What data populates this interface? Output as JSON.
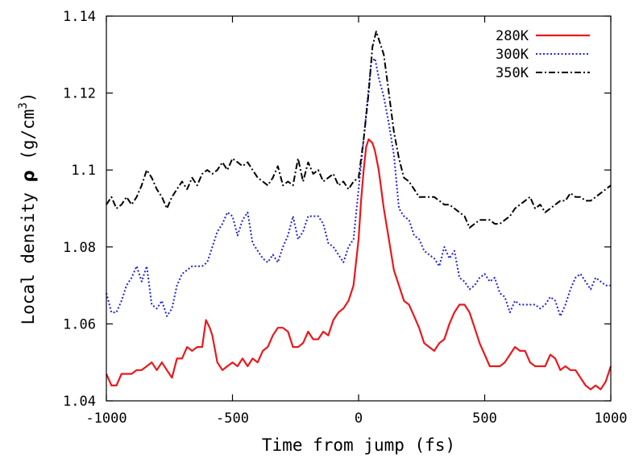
{
  "chart_data": {
    "type": "line",
    "title": "",
    "xlabel": "Time from jump (fs)",
    "ylabel_prefix": "Local density ",
    "ylabel_symbol": "ρ",
    "ylabel_unit_open": " (g/cm",
    "ylabel_unit_sup": "3",
    "ylabel_unit_close": ")",
    "xlim": [
      -1000,
      1000
    ],
    "ylim": [
      1.04,
      1.14
    ],
    "xticks": [
      -1000,
      -500,
      0,
      500,
      1000
    ],
    "yticks": [
      1.04,
      1.06,
      1.08,
      1.1,
      1.12,
      1.14
    ],
    "xtick_labels": [
      "-1000",
      "-500",
      "0",
      "500",
      "1000"
    ],
    "ytick_labels": [
      "1.04",
      "1.06",
      "1.08",
      "1.1",
      "1.12",
      "1.14"
    ],
    "grid": false,
    "legend_position": "top-right",
    "series": [
      {
        "name": "280K",
        "color": "#e8191c",
        "style": "solid",
        "points": [
          [
            -1000,
            1.047
          ],
          [
            -980,
            1.044
          ],
          [
            -960,
            1.044
          ],
          [
            -940,
            1.047
          ],
          [
            -900,
            1.047
          ],
          [
            -880,
            1.048
          ],
          [
            -860,
            1.048
          ],
          [
            -840,
            1.049
          ],
          [
            -820,
            1.05
          ],
          [
            -800,
            1.048
          ],
          [
            -780,
            1.05
          ],
          [
            -760,
            1.048
          ],
          [
            -740,
            1.046
          ],
          [
            -720,
            1.051
          ],
          [
            -700,
            1.051
          ],
          [
            -680,
            1.054
          ],
          [
            -660,
            1.053
          ],
          [
            -640,
            1.054
          ],
          [
            -620,
            1.054
          ],
          [
            -605,
            1.061
          ],
          [
            -590,
            1.059
          ],
          [
            -580,
            1.057
          ],
          [
            -560,
            1.05
          ],
          [
            -540,
            1.048
          ],
          [
            -520,
            1.049
          ],
          [
            -500,
            1.05
          ],
          [
            -480,
            1.049
          ],
          [
            -460,
            1.051
          ],
          [
            -440,
            1.049
          ],
          [
            -420,
            1.051
          ],
          [
            -400,
            1.05
          ],
          [
            -380,
            1.053
          ],
          [
            -360,
            1.054
          ],
          [
            -340,
            1.057
          ],
          [
            -320,
            1.059
          ],
          [
            -300,
            1.059
          ],
          [
            -280,
            1.058
          ],
          [
            -260,
            1.054
          ],
          [
            -240,
            1.054
          ],
          [
            -220,
            1.055
          ],
          [
            -200,
            1.058
          ],
          [
            -180,
            1.056
          ],
          [
            -160,
            1.056
          ],
          [
            -140,
            1.058
          ],
          [
            -120,
            1.057
          ],
          [
            -100,
            1.061
          ],
          [
            -80,
            1.063
          ],
          [
            -60,
            1.064
          ],
          [
            -40,
            1.066
          ],
          [
            -20,
            1.07
          ],
          [
            0,
            1.082
          ],
          [
            10,
            1.092
          ],
          [
            20,
            1.1
          ],
          [
            30,
            1.106
          ],
          [
            40,
            1.108
          ],
          [
            55,
            1.107
          ],
          [
            65,
            1.105
          ],
          [
            80,
            1.1
          ],
          [
            100,
            1.09
          ],
          [
            120,
            1.082
          ],
          [
            140,
            1.074
          ],
          [
            160,
            1.07
          ],
          [
            180,
            1.066
          ],
          [
            200,
            1.065
          ],
          [
            220,
            1.062
          ],
          [
            240,
            1.059
          ],
          [
            260,
            1.055
          ],
          [
            280,
            1.054
          ],
          [
            300,
            1.053
          ],
          [
            320,
            1.055
          ],
          [
            340,
            1.056
          ],
          [
            360,
            1.06
          ],
          [
            380,
            1.063
          ],
          [
            400,
            1.065
          ],
          [
            420,
            1.065
          ],
          [
            440,
            1.063
          ],
          [
            460,
            1.059
          ],
          [
            480,
            1.055
          ],
          [
            500,
            1.052
          ],
          [
            520,
            1.049
          ],
          [
            540,
            1.049
          ],
          [
            560,
            1.049
          ],
          [
            580,
            1.05
          ],
          [
            600,
            1.052
          ],
          [
            620,
            1.054
          ],
          [
            640,
            1.053
          ],
          [
            660,
            1.053
          ],
          [
            680,
            1.05
          ],
          [
            700,
            1.049
          ],
          [
            720,
            1.049
          ],
          [
            740,
            1.049
          ],
          [
            760,
            1.052
          ],
          [
            780,
            1.051
          ],
          [
            800,
            1.048
          ],
          [
            820,
            1.049
          ],
          [
            840,
            1.048
          ],
          [
            860,
            1.048
          ],
          [
            880,
            1.046
          ],
          [
            900,
            1.044
          ],
          [
            920,
            1.043
          ],
          [
            940,
            1.044
          ],
          [
            960,
            1.043
          ],
          [
            980,
            1.045
          ],
          [
            1000,
            1.049
          ]
        ]
      },
      {
        "name": "300K",
        "color": "#1f22d8",
        "style": "dotted",
        "points": [
          [
            -1000,
            1.068
          ],
          [
            -980,
            1.063
          ],
          [
            -960,
            1.063
          ],
          [
            -940,
            1.066
          ],
          [
            -920,
            1.07
          ],
          [
            -900,
            1.072
          ],
          [
            -880,
            1.075
          ],
          [
            -860,
            1.071
          ],
          [
            -840,
            1.075
          ],
          [
            -820,
            1.065
          ],
          [
            -800,
            1.064
          ],
          [
            -780,
            1.066
          ],
          [
            -760,
            1.062
          ],
          [
            -740,
            1.064
          ],
          [
            -720,
            1.07
          ],
          [
            -700,
            1.073
          ],
          [
            -680,
            1.074
          ],
          [
            -660,
            1.075
          ],
          [
            -640,
            1.075
          ],
          [
            -620,
            1.075
          ],
          [
            -600,
            1.076
          ],
          [
            -580,
            1.08
          ],
          [
            -560,
            1.084
          ],
          [
            -540,
            1.086
          ],
          [
            -520,
            1.089
          ],
          [
            -500,
            1.088
          ],
          [
            -480,
            1.083
          ],
          [
            -460,
            1.087
          ],
          [
            -440,
            1.089
          ],
          [
            -420,
            1.081
          ],
          [
            -400,
            1.079
          ],
          [
            -380,
            1.077
          ],
          [
            -360,
            1.076
          ],
          [
            -340,
            1.078
          ],
          [
            -320,
            1.076
          ],
          [
            -300,
            1.08
          ],
          [
            -280,
            1.083
          ],
          [
            -260,
            1.088
          ],
          [
            -240,
            1.082
          ],
          [
            -220,
            1.084
          ],
          [
            -200,
            1.088
          ],
          [
            -180,
            1.088
          ],
          [
            -160,
            1.088
          ],
          [
            -140,
            1.086
          ],
          [
            -120,
            1.081
          ],
          [
            -100,
            1.08
          ],
          [
            -80,
            1.078
          ],
          [
            -60,
            1.076
          ],
          [
            -40,
            1.08
          ],
          [
            -20,
            1.082
          ],
          [
            0,
            1.095
          ],
          [
            20,
            1.108
          ],
          [
            35,
            1.118
          ],
          [
            50,
            1.128
          ],
          [
            65,
            1.129
          ],
          [
            80,
            1.124
          ],
          [
            100,
            1.119
          ],
          [
            120,
            1.112
          ],
          [
            140,
            1.104
          ],
          [
            160,
            1.09
          ],
          [
            180,
            1.088
          ],
          [
            200,
            1.087
          ],
          [
            220,
            1.083
          ],
          [
            240,
            1.082
          ],
          [
            260,
            1.079
          ],
          [
            280,
            1.078
          ],
          [
            300,
            1.077
          ],
          [
            320,
            1.075
          ],
          [
            340,
            1.08
          ],
          [
            360,
            1.077
          ],
          [
            380,
            1.079
          ],
          [
            400,
            1.072
          ],
          [
            420,
            1.071
          ],
          [
            440,
            1.069
          ],
          [
            460,
            1.07
          ],
          [
            480,
            1.072
          ],
          [
            500,
            1.073
          ],
          [
            520,
            1.071
          ],
          [
            540,
            1.072
          ],
          [
            560,
            1.068
          ],
          [
            580,
            1.067
          ],
          [
            600,
            1.063
          ],
          [
            620,
            1.066
          ],
          [
            640,
            1.065
          ],
          [
            660,
            1.065
          ],
          [
            680,
            1.065
          ],
          [
            700,
            1.065
          ],
          [
            720,
            1.064
          ],
          [
            740,
            1.065
          ],
          [
            760,
            1.067
          ],
          [
            780,
            1.066
          ],
          [
            800,
            1.062
          ],
          [
            820,
            1.065
          ],
          [
            840,
            1.069
          ],
          [
            860,
            1.072
          ],
          [
            880,
            1.073
          ],
          [
            900,
            1.071
          ],
          [
            920,
            1.069
          ],
          [
            940,
            1.072
          ],
          [
            960,
            1.071
          ],
          [
            980,
            1.07
          ],
          [
            1000,
            1.07
          ]
        ]
      },
      {
        "name": "350K",
        "color": "#000000",
        "style": "dashdot",
        "points": [
          [
            -1000,
            1.091
          ],
          [
            -980,
            1.093
          ],
          [
            -960,
            1.09
          ],
          [
            -940,
            1.091
          ],
          [
            -920,
            1.093
          ],
          [
            -900,
            1.091
          ],
          [
            -880,
            1.093
          ],
          [
            -860,
            1.096
          ],
          [
            -840,
            1.1
          ],
          [
            -820,
            1.098
          ],
          [
            -800,
            1.095
          ],
          [
            -780,
            1.093
          ],
          [
            -760,
            1.09
          ],
          [
            -740,
            1.093
          ],
          [
            -720,
            1.095
          ],
          [
            -700,
            1.097
          ],
          [
            -680,
            1.095
          ],
          [
            -660,
            1.098
          ],
          [
            -640,
            1.096
          ],
          [
            -620,
            1.099
          ],
          [
            -600,
            1.1
          ],
          [
            -580,
            1.099
          ],
          [
            -560,
            1.1
          ],
          [
            -540,
            1.102
          ],
          [
            -520,
            1.1
          ],
          [
            -500,
            1.103
          ],
          [
            -480,
            1.102
          ],
          [
            -460,
            1.101
          ],
          [
            -440,
            1.102
          ],
          [
            -420,
            1.1
          ],
          [
            -400,
            1.098
          ],
          [
            -380,
            1.097
          ],
          [
            -360,
            1.096
          ],
          [
            -340,
            1.098
          ],
          [
            -320,
            1.101
          ],
          [
            -300,
            1.096
          ],
          [
            -280,
            1.097
          ],
          [
            -260,
            1.096
          ],
          [
            -240,
            1.103
          ],
          [
            -220,
            1.097
          ],
          [
            -200,
            1.102
          ],
          [
            -180,
            1.099
          ],
          [
            -160,
            1.1
          ],
          [
            -140,
            1.097
          ],
          [
            -120,
            1.098
          ],
          [
            -100,
            1.099
          ],
          [
            -80,
            1.096
          ],
          [
            -60,
            1.097
          ],
          [
            -40,
            1.095
          ],
          [
            -20,
            1.097
          ],
          [
            0,
            1.098
          ],
          [
            20,
            1.108
          ],
          [
            40,
            1.12
          ],
          [
            55,
            1.132
          ],
          [
            70,
            1.136
          ],
          [
            85,
            1.133
          ],
          [
            100,
            1.13
          ],
          [
            120,
            1.12
          ],
          [
            140,
            1.11
          ],
          [
            160,
            1.103
          ],
          [
            180,
            1.098
          ],
          [
            200,
            1.097
          ],
          [
            220,
            1.095
          ],
          [
            240,
            1.093
          ],
          [
            260,
            1.093
          ],
          [
            280,
            1.093
          ],
          [
            300,
            1.093
          ],
          [
            320,
            1.092
          ],
          [
            340,
            1.091
          ],
          [
            360,
            1.091
          ],
          [
            380,
            1.09
          ],
          [
            400,
            1.089
          ],
          [
            420,
            1.088
          ],
          [
            440,
            1.085
          ],
          [
            460,
            1.086
          ],
          [
            480,
            1.087
          ],
          [
            500,
            1.087
          ],
          [
            520,
            1.087
          ],
          [
            540,
            1.086
          ],
          [
            560,
            1.086
          ],
          [
            580,
            1.087
          ],
          [
            600,
            1.088
          ],
          [
            620,
            1.09
          ],
          [
            640,
            1.091
          ],
          [
            660,
            1.092
          ],
          [
            680,
            1.093
          ],
          [
            700,
            1.09
          ],
          [
            720,
            1.091
          ],
          [
            740,
            1.089
          ],
          [
            760,
            1.09
          ],
          [
            780,
            1.091
          ],
          [
            800,
            1.092
          ],
          [
            820,
            1.092
          ],
          [
            840,
            1.094
          ],
          [
            860,
            1.093
          ],
          [
            880,
            1.093
          ],
          [
            900,
            1.092
          ],
          [
            920,
            1.092
          ],
          [
            940,
            1.093
          ],
          [
            960,
            1.094
          ],
          [
            980,
            1.095
          ],
          [
            1000,
            1.096
          ]
        ]
      }
    ]
  }
}
